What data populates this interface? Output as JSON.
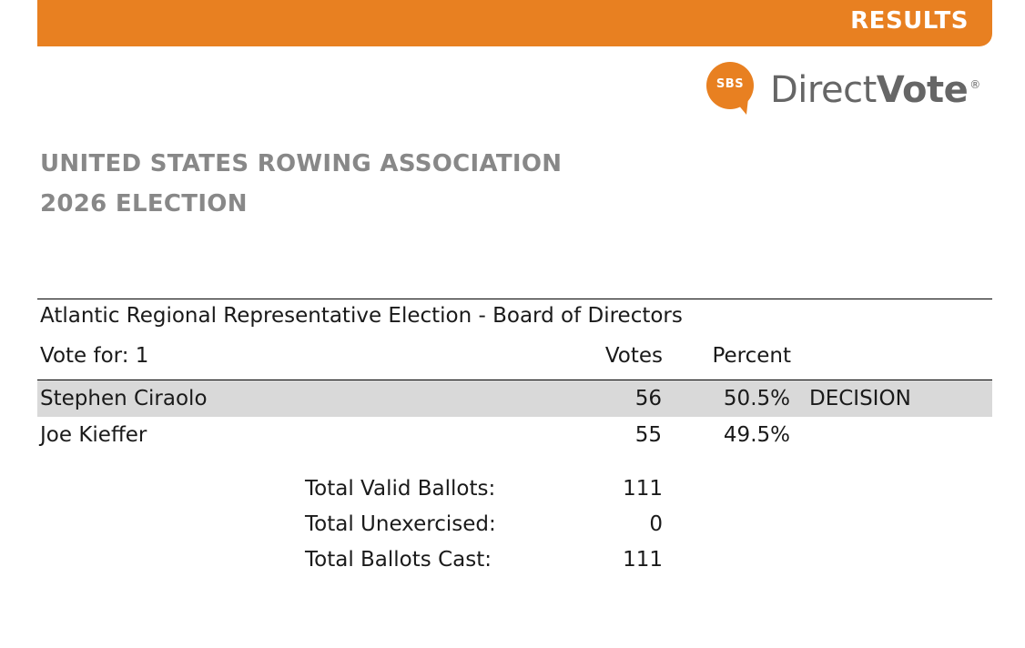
{
  "banner": {
    "label": "RESULTS",
    "color": "#e88021"
  },
  "logo": {
    "mark": "SBS",
    "word_light": "Direct",
    "word_bold": "Vote",
    "registered": "®",
    "color": "#e88021"
  },
  "org": {
    "line1": "UNITED STATES ROWING ASSOCIATION",
    "line2": "2026 ELECTION"
  },
  "race": {
    "title": "Atlantic Regional Representative Election - Board of Directors",
    "vote_for": "Vote for: 1",
    "col_votes": "Votes",
    "col_percent": "Percent",
    "candidates": [
      {
        "name": "Stephen Ciraolo",
        "votes": "56",
        "percent": "50.5%",
        "note": "DECISION"
      },
      {
        "name": "Joe Kieffer",
        "votes": "55",
        "percent": "49.5%",
        "note": ""
      }
    ],
    "totals": [
      {
        "label": "Total Valid Ballots:",
        "value": "111"
      },
      {
        "label": "Total Unexercised:",
        "value": "0"
      },
      {
        "label": "Total Ballots Cast:",
        "value": "111"
      }
    ]
  }
}
